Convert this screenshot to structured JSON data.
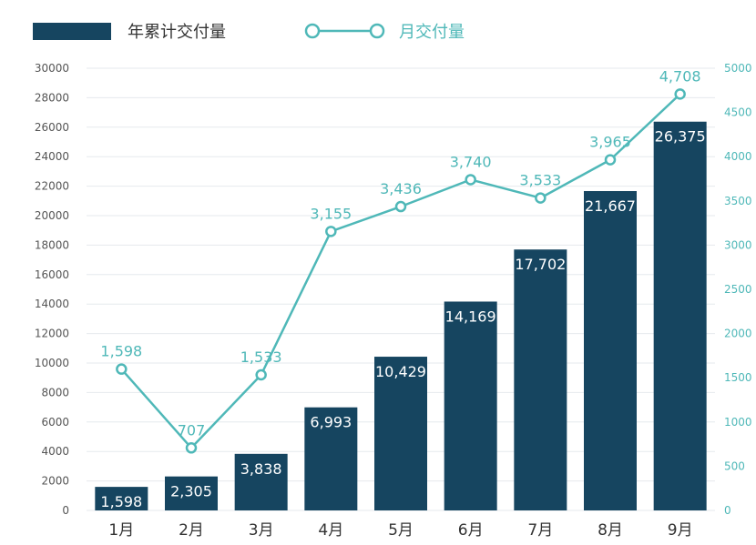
{
  "chart_data": {
    "type": "bar",
    "categories": [
      "1月",
      "2月",
      "3月",
      "4月",
      "5月",
      "6月",
      "7月",
      "8月",
      "9月"
    ],
    "series": [
      {
        "name": "年累计交付量",
        "type": "bar",
        "axis": "left",
        "values": [
          1598,
          2305,
          3838,
          6993,
          10429,
          14169,
          17702,
          21667,
          26375
        ],
        "labels": [
          "1,598",
          "2,305",
          "3,838",
          "6,993",
          "10,429",
          "14,169",
          "17,702",
          "21,667",
          "26,375"
        ]
      },
      {
        "name": "月交付量",
        "type": "line",
        "axis": "right",
        "values": [
          1598,
          707,
          1533,
          3155,
          3436,
          3740,
          3533,
          3965,
          4708
        ],
        "labels": [
          "1,598",
          "707",
          "1,533",
          "3,155",
          "3,436",
          "3,740",
          "3,533",
          "3,965",
          "4,708"
        ]
      }
    ],
    "y_left": {
      "ylim": [
        0,
        30000
      ],
      "ticks": [
        "0",
        "2000",
        "4000",
        "6000",
        "8000",
        "10000",
        "12000",
        "14000",
        "16000",
        "18000",
        "20000",
        "22000",
        "24000",
        "26000",
        "28000",
        "30000"
      ]
    },
    "y_right": {
      "ylim": [
        0,
        5000
      ],
      "ticks": [
        "0",
        "500",
        "1000",
        "1500",
        "2000",
        "2500",
        "3000",
        "3500",
        "4000",
        "4500",
        "5000"
      ]
    },
    "legend_placement": "top-left",
    "grid": true,
    "colors": {
      "bar": "#164560",
      "line": "#4fb8b8",
      "grid": "#e6eaed",
      "bar_label": "#ffffff"
    }
  }
}
